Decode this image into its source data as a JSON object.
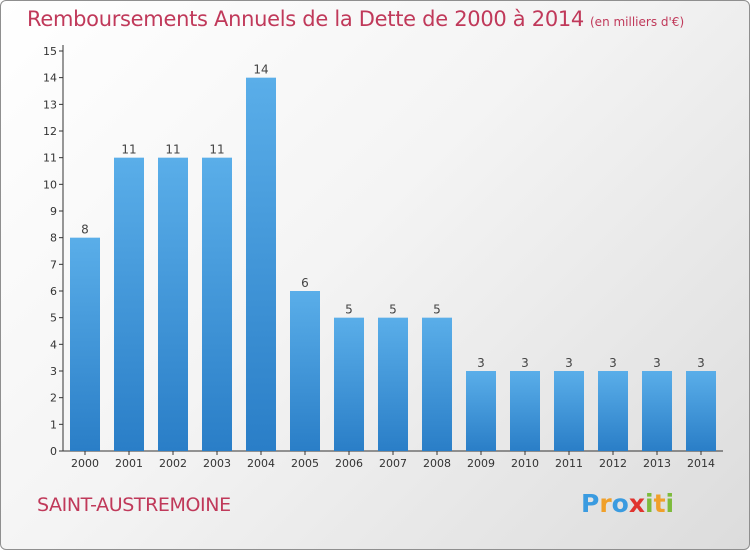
{
  "title": "Remboursements Annuels de la Dette de 2000 à 2014",
  "unit_note": "(en milliers d'€)",
  "commune": "SAINT-AUSTREMOINE",
  "logo": {
    "text": "Proxiti",
    "letters": [
      {
        "char": "P",
        "color": "#3a9be0"
      },
      {
        "char": "r",
        "color": "#f0a02a"
      },
      {
        "char": "o",
        "color": "#3a9be0"
      },
      {
        "char": "x",
        "color": "#e0342f"
      },
      {
        "char": "i",
        "color": "#7dbb3c"
      },
      {
        "char": "t",
        "color": "#f0a02a"
      },
      {
        "char": "i",
        "color": "#7dbb3c"
      }
    ]
  },
  "colors": {
    "title": "#c0395a",
    "bar_top": "#5aaee9",
    "bar_bottom": "#2a7ec7",
    "axis": "#333333"
  },
  "chart_data": {
    "type": "bar",
    "categories": [
      "2000",
      "2001",
      "2002",
      "2003",
      "2004",
      "2005",
      "2006",
      "2007",
      "2008",
      "2009",
      "2010",
      "2011",
      "2012",
      "2013",
      "2014"
    ],
    "values": [
      8,
      11,
      11,
      11,
      14,
      6,
      5,
      5,
      5,
      3,
      3,
      3,
      3,
      3,
      3
    ],
    "ylim": [
      0,
      15
    ],
    "yticks": [
      0,
      1,
      2,
      3,
      4,
      5,
      6,
      7,
      8,
      9,
      10,
      11,
      12,
      13,
      14,
      15
    ],
    "grid": false,
    "data_labels": true
  }
}
